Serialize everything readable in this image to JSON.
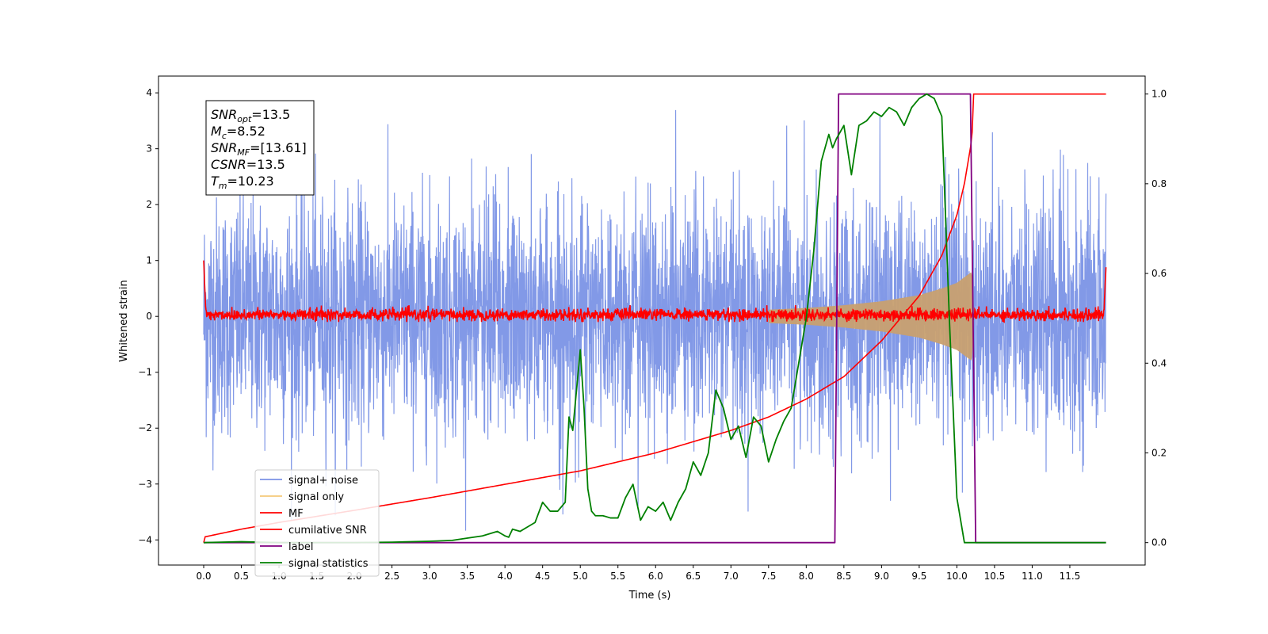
{
  "chart_data": {
    "type": "line",
    "xlabel": "Time (s)",
    "ylabel": "Whitened strain",
    "xlim": [
      -0.6,
      12.5
    ],
    "ylim": [
      -4.45,
      4.3
    ],
    "y2lim": [
      -0.05,
      1.04
    ],
    "x_ticks": [
      "0.0",
      "0.5",
      "1.0",
      "1.5",
      "2.0",
      "2.5",
      "3.0",
      "3.5",
      "4.0",
      "4.5",
      "5.0",
      "5.5",
      "6.0",
      "6.5",
      "7.0",
      "7.5",
      "8.0",
      "8.5",
      "9.0",
      "9.5",
      "10.0",
      "10.5",
      "11.0",
      "11.5"
    ],
    "y_ticks": [
      "−4",
      "−3",
      "−2",
      "−1",
      "0",
      "1",
      "2",
      "3",
      "4"
    ],
    "y2_ticks": [
      "0.0",
      "0.2",
      "0.4",
      "0.6",
      "0.8",
      "1.0"
    ],
    "annotation": [
      {
        "base": "SNR",
        "sub": "opt",
        "value": "=13.5"
      },
      {
        "base": "M",
        "sub": "c",
        "value": "=8.52"
      },
      {
        "base": "SNR",
        "sub": "MF",
        "value": "=[13.61]"
      },
      {
        "base": "CSNR",
        "sub": "",
        "value": "=13.5"
      },
      {
        "base": "T",
        "sub": "m",
        "value": "=10.23"
      }
    ],
    "legend": {
      "location": "lower-left",
      "entries": [
        {
          "label": "signal+ noise",
          "color": "#7b93e6"
        },
        {
          "label": "signal only",
          "color": "#f5c97a"
        },
        {
          "label": "MF",
          "color": "#ff0000"
        },
        {
          "label": "cumilative SNR",
          "color": "#ff0000"
        },
        {
          "label": "label",
          "color": "#800080"
        },
        {
          "label": "signal statistics",
          "color": "#008000"
        }
      ]
    },
    "series": [
      {
        "name": "signal+ noise",
        "axis": "left",
        "color": "#7b93e6",
        "kind": "noise",
        "t_start": 0.0,
        "t_end": 11.98,
        "approx_range": [
          -4.0,
          3.75
        ]
      },
      {
        "name": "signal only",
        "axis": "left",
        "color": "#c8a070",
        "kind": "chirp",
        "t_merge": 10.23,
        "envelope": {
          "x": [
            7.5,
            8.0,
            8.5,
            9.0,
            9.5,
            9.8,
            10.0,
            10.1,
            10.2,
            10.23
          ],
          "y": [
            0.12,
            0.15,
            0.2,
            0.27,
            0.38,
            0.5,
            0.6,
            0.7,
            0.8,
            0.0
          ]
        }
      },
      {
        "name": "MF",
        "axis": "left",
        "color": "#ff0000",
        "kind": "noise_small",
        "t_start": 0.0,
        "t_end": 11.98,
        "approx_range": [
          -0.1,
          0.2
        ],
        "edge_values": [
          1.0,
          0.88
        ]
      },
      {
        "name": "cumilative SNR",
        "axis": "right",
        "color": "#ff0000",
        "x": [
          0.0,
          0.02,
          0.5,
          1.0,
          2.0,
          3.0,
          4.0,
          5.0,
          6.0,
          7.0,
          7.5,
          8.0,
          8.5,
          9.0,
          9.5,
          9.8,
          10.0,
          10.1,
          10.2,
          10.22,
          11.98
        ],
        "y": [
          0.0,
          0.013,
          0.03,
          0.045,
          0.072,
          0.1,
          0.13,
          0.16,
          0.2,
          0.25,
          0.28,
          0.32,
          0.37,
          0.45,
          0.55,
          0.64,
          0.73,
          0.8,
          0.9,
          1.0,
          1.0
        ]
      },
      {
        "name": "label",
        "axis": "right",
        "color": "#800080",
        "x": [
          0.0,
          8.38,
          8.43,
          10.18,
          10.25,
          11.98
        ],
        "y": [
          0.0,
          0.0,
          1.0,
          1.0,
          0.0,
          0.0
        ]
      },
      {
        "name": "signal statistics",
        "axis": "right",
        "color": "#008000",
        "x": [
          0.0,
          0.5,
          1.0,
          2.0,
          2.5,
          3.0,
          3.3,
          3.5,
          3.7,
          3.8,
          3.9,
          4.0,
          4.05,
          4.1,
          4.2,
          4.3,
          4.4,
          4.5,
          4.6,
          4.7,
          4.8,
          4.85,
          4.9,
          5.0,
          5.05,
          5.1,
          5.15,
          5.2,
          5.3,
          5.4,
          5.5,
          5.6,
          5.7,
          5.8,
          5.9,
          6.0,
          6.1,
          6.2,
          6.3,
          6.4,
          6.5,
          6.6,
          6.7,
          6.8,
          6.9,
          7.0,
          7.1,
          7.2,
          7.3,
          7.4,
          7.5,
          7.6,
          7.7,
          7.8,
          7.9,
          8.0,
          8.1,
          8.2,
          8.3,
          8.35,
          8.4,
          8.5,
          8.6,
          8.7,
          8.8,
          8.9,
          9.0,
          9.1,
          9.2,
          9.3,
          9.4,
          9.5,
          9.6,
          9.7,
          9.8,
          9.9,
          10.0,
          10.1,
          10.2,
          10.25,
          10.3,
          11.0,
          11.98
        ],
        "y": [
          0.0,
          0.002,
          0.0,
          0.0,
          0.001,
          0.003,
          0.005,
          0.01,
          0.015,
          0.02,
          0.025,
          0.015,
          0.012,
          0.03,
          0.025,
          0.035,
          0.045,
          0.09,
          0.07,
          0.07,
          0.09,
          0.28,
          0.25,
          0.43,
          0.3,
          0.12,
          0.07,
          0.06,
          0.06,
          0.055,
          0.055,
          0.1,
          0.13,
          0.05,
          0.08,
          0.07,
          0.09,
          0.05,
          0.09,
          0.12,
          0.18,
          0.15,
          0.2,
          0.34,
          0.3,
          0.23,
          0.26,
          0.19,
          0.28,
          0.26,
          0.18,
          0.23,
          0.27,
          0.3,
          0.4,
          0.5,
          0.65,
          0.85,
          0.91,
          0.88,
          0.9,
          0.93,
          0.82,
          0.93,
          0.94,
          0.96,
          0.95,
          0.97,
          0.96,
          0.93,
          0.97,
          0.99,
          1.0,
          0.99,
          0.95,
          0.5,
          0.1,
          0.0,
          0.0,
          0.0,
          0.0,
          0.0,
          0.0
        ]
      }
    ]
  }
}
